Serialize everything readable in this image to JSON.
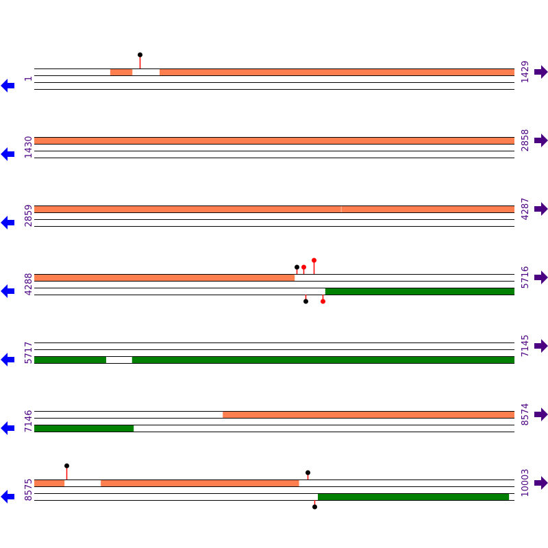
{
  "colors": {
    "top_feature": "#ff7f50",
    "bottom_feature": "#008000",
    "left_arrow": "#0000ff",
    "right_arrow": "#4b0082",
    "label": "#4b0082",
    "lollipop_black": "#000000",
    "lollipop_red": "#ff0000",
    "stem_red": "#ff0000"
  },
  "rows": [
    {
      "start_label": "1",
      "end_label": "1429",
      "start": 1,
      "end": 1429,
      "top": [
        [
          227,
          292
        ],
        [
          374,
          1429
        ]
      ],
      "bottom": [],
      "lollipops": [
        {
          "pos": 315,
          "strand": "top",
          "color": "black",
          "height": "tall"
        }
      ]
    },
    {
      "start_label": "1430",
      "end_label": "2858",
      "start": 1430,
      "end": 2858,
      "top": [
        [
          1430,
          2858
        ]
      ],
      "bottom": [],
      "lollipops": []
    },
    {
      "start_label": "2859",
      "end_label": "4287",
      "start": 2859,
      "end": 4287,
      "top": [
        [
          2859,
          3771
        ],
        [
          3773,
          4287
        ]
      ],
      "bottom": [],
      "lollipops": []
    },
    {
      "start_label": "4288",
      "end_label": "5716",
      "start": 4288,
      "end": 5716,
      "top": [
        [
          4288,
          5062
        ]
      ],
      "bottom": [
        [
          5154,
          5716
        ]
      ],
      "lollipops": [
        {
          "pos": 5069,
          "strand": "top",
          "color": "black",
          "height": "short"
        },
        {
          "pos": 5089,
          "strand": "top",
          "color": "red",
          "height": "short"
        },
        {
          "pos": 5120,
          "strand": "top",
          "color": "red",
          "height": "tall"
        },
        {
          "pos": 5095,
          "strand": "bottom",
          "color": "black",
          "height": "short"
        },
        {
          "pos": 5146,
          "strand": "bottom",
          "color": "red",
          "height": "short"
        }
      ]
    },
    {
      "start_label": "5717",
      "end_label": "7145",
      "start": 5717,
      "end": 7145,
      "top": [],
      "bottom": [
        [
          5717,
          5930
        ],
        [
          6008,
          7145
        ]
      ],
      "lollipops": []
    },
    {
      "start_label": "7146",
      "end_label": "8574",
      "start": 7146,
      "end": 8574,
      "top": [
        [
          7707,
          8574
        ]
      ],
      "bottom": [
        [
          7146,
          7441
        ]
      ],
      "lollipops": []
    },
    {
      "start_label": "8575",
      "end_label": "10003",
      "start": 8575,
      "end": 10003,
      "top": [
        [
          8575,
          8664
        ],
        [
          8773,
          9362
        ]
      ],
      "bottom": [
        [
          9419,
          9987
        ]
      ],
      "lollipops": [
        {
          "pos": 8671,
          "strand": "top",
          "color": "black",
          "height": "tall"
        },
        {
          "pos": 9388,
          "strand": "top",
          "color": "black",
          "height": "short"
        },
        {
          "pos": 9409,
          "strand": "bottom",
          "color": "black",
          "height": "short"
        }
      ]
    }
  ]
}
